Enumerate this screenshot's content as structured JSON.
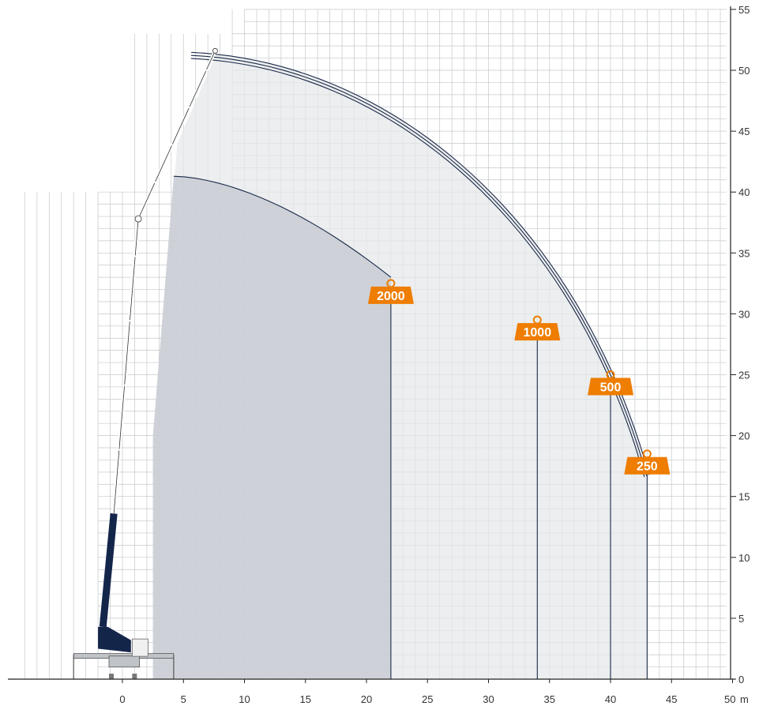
{
  "x_axis": {
    "ticks": [
      0,
      5,
      10,
      15,
      20,
      25,
      30,
      35,
      40,
      45,
      50
    ],
    "unit": "m",
    "range": [
      -10,
      50
    ]
  },
  "y_axis": {
    "ticks": [
      0,
      5,
      10,
      15,
      20,
      25,
      30,
      35,
      40,
      45,
      50,
      55
    ],
    "range": [
      0,
      55
    ]
  },
  "grid": true,
  "load_zones": [
    {
      "label": "2000",
      "max_reach": 22,
      "tag_height": 32.5
    },
    {
      "label": "1000",
      "max_reach": 34,
      "tag_height": 29.5
    },
    {
      "label": "500",
      "max_reach": 40,
      "tag_height": 25
    },
    {
      "label": "250",
      "max_reach": 43,
      "tag_height": 18.5
    }
  ],
  "colors": {
    "grid": "#c4c8cc",
    "envelope_light": "#e6e8ea",
    "envelope_dark": "#c7cbd2",
    "curve": "#1b2a4a",
    "tag": "#ee7d00",
    "boom_base": "#14254a",
    "chassis": "#c0c4c8"
  }
}
